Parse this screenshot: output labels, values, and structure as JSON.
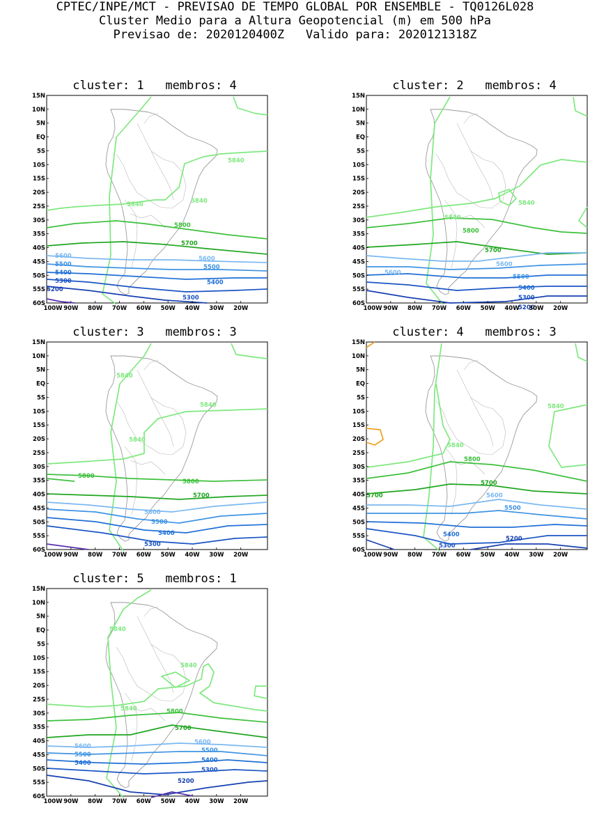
{
  "header": {
    "line1": "CPTEC/INPE/MCT - PREVISAO DE TEMPO GLOBAL POR ENSEMBLE - TQ0126L028",
    "line2": "Cluster Medio para a Altura Geopotencial (m) em 500 hPa",
    "line3": "Previsao de: 2020120400Z   Valido para: 2020121318Z"
  },
  "lat_ticks": [
    "15N",
    "10N",
    "5N",
    "EQ",
    "5S",
    "10S",
    "15S",
    "20S",
    "25S",
    "30S",
    "35S",
    "40S",
    "45S",
    "50S",
    "55S",
    "60S"
  ],
  "lon_ticks": [
    "100W",
    "90W",
    "80W",
    "70W",
    "60W",
    "50W",
    "40W",
    "30W",
    "20W"
  ],
  "colors": {
    "c5840": "#7ee87e",
    "c5800": "#3cc03c",
    "c5700": "#1fa51f",
    "c5600": "#7ab8f0",
    "c5500": "#3f93e3",
    "c5400": "#1f6fd6",
    "c5300": "#1a55c4",
    "c5200": "#1740b0",
    "c5100": "#5a2fae",
    "warm": "#f0a020",
    "coast": "#9a9a9a"
  },
  "panels": [
    {
      "title": "cluster: 1   membros: 4",
      "labels": [
        "5840",
        "5840",
        "5840",
        "5800",
        "5700",
        "5600",
        "5600",
        "5500",
        "5500",
        "5400",
        "5400",
        "5300",
        "5300",
        "5200"
      ]
    },
    {
      "title": "cluster: 2   membros: 4",
      "labels": [
        "5840",
        "5840",
        "5800",
        "5700",
        "5600",
        "5600",
        "5500",
        "5400",
        "5300",
        "5200"
      ]
    },
    {
      "title": "cluster: 3   membros: 3",
      "labels": [
        "5840",
        "5840",
        "5840",
        "5800",
        "5800",
        "5700",
        "5600",
        "5500",
        "5400",
        "5300"
      ]
    },
    {
      "title": "cluster: 4   membros: 3",
      "labels": [
        "5840",
        "5840",
        "5800",
        "5700",
        "5700",
        "5600",
        "5500",
        "5400",
        "5300",
        "5200"
      ]
    },
    {
      "title": "cluster: 5   membros: 1",
      "labels": [
        "5840",
        "5840",
        "5840",
        "5800",
        "5700",
        "5600",
        "5600",
        "5500",
        "5500",
        "5400",
        "5400",
        "5300",
        "5200"
      ]
    }
  ]
}
